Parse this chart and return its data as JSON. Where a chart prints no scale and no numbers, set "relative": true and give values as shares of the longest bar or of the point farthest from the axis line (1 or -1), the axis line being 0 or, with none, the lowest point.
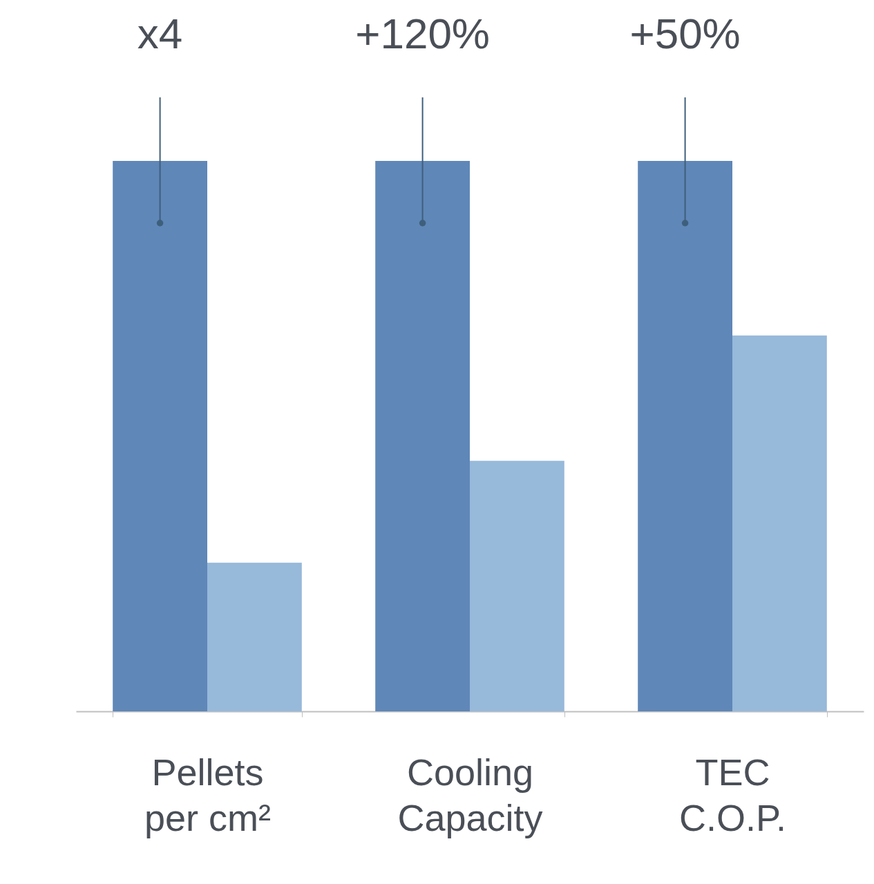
{
  "chart_data": {
    "type": "bar",
    "relative": true,
    "categories": [
      "Pellets per cm²",
      "Cooling Capacity",
      "TEC C.O.P."
    ],
    "series": [
      {
        "color": "#5f87b8",
        "values": [
          1,
          1,
          1
        ]
      },
      {
        "color": "#97b9da",
        "values": [
          0.27,
          0.455,
          0.683
        ]
      }
    ],
    "annotations": [
      "x4",
      "+120%",
      "+50%"
    ]
  }
}
